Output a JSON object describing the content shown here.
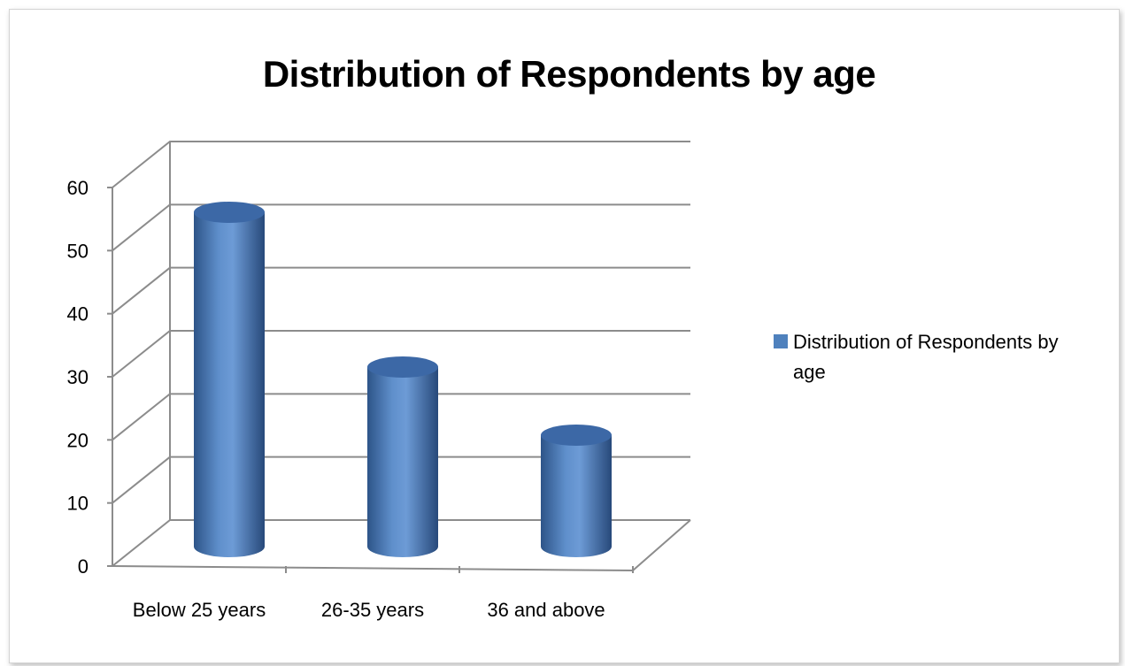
{
  "chart_data": {
    "type": "bar",
    "style": "3d-cylinder",
    "title": "Distribution of Respondents by age",
    "categories": [
      "Below 25 years",
      "26-35 years",
      "36 and above"
    ],
    "series": [
      {
        "name": "Distribution of Respondents by age",
        "values": [
          54,
          29,
          18
        ],
        "color": "#4f81bd"
      }
    ],
    "yticks": [
      0,
      10,
      20,
      30,
      40,
      50,
      60
    ],
    "ylim": [
      0,
      60
    ],
    "grid": true,
    "legend_position": "right"
  }
}
